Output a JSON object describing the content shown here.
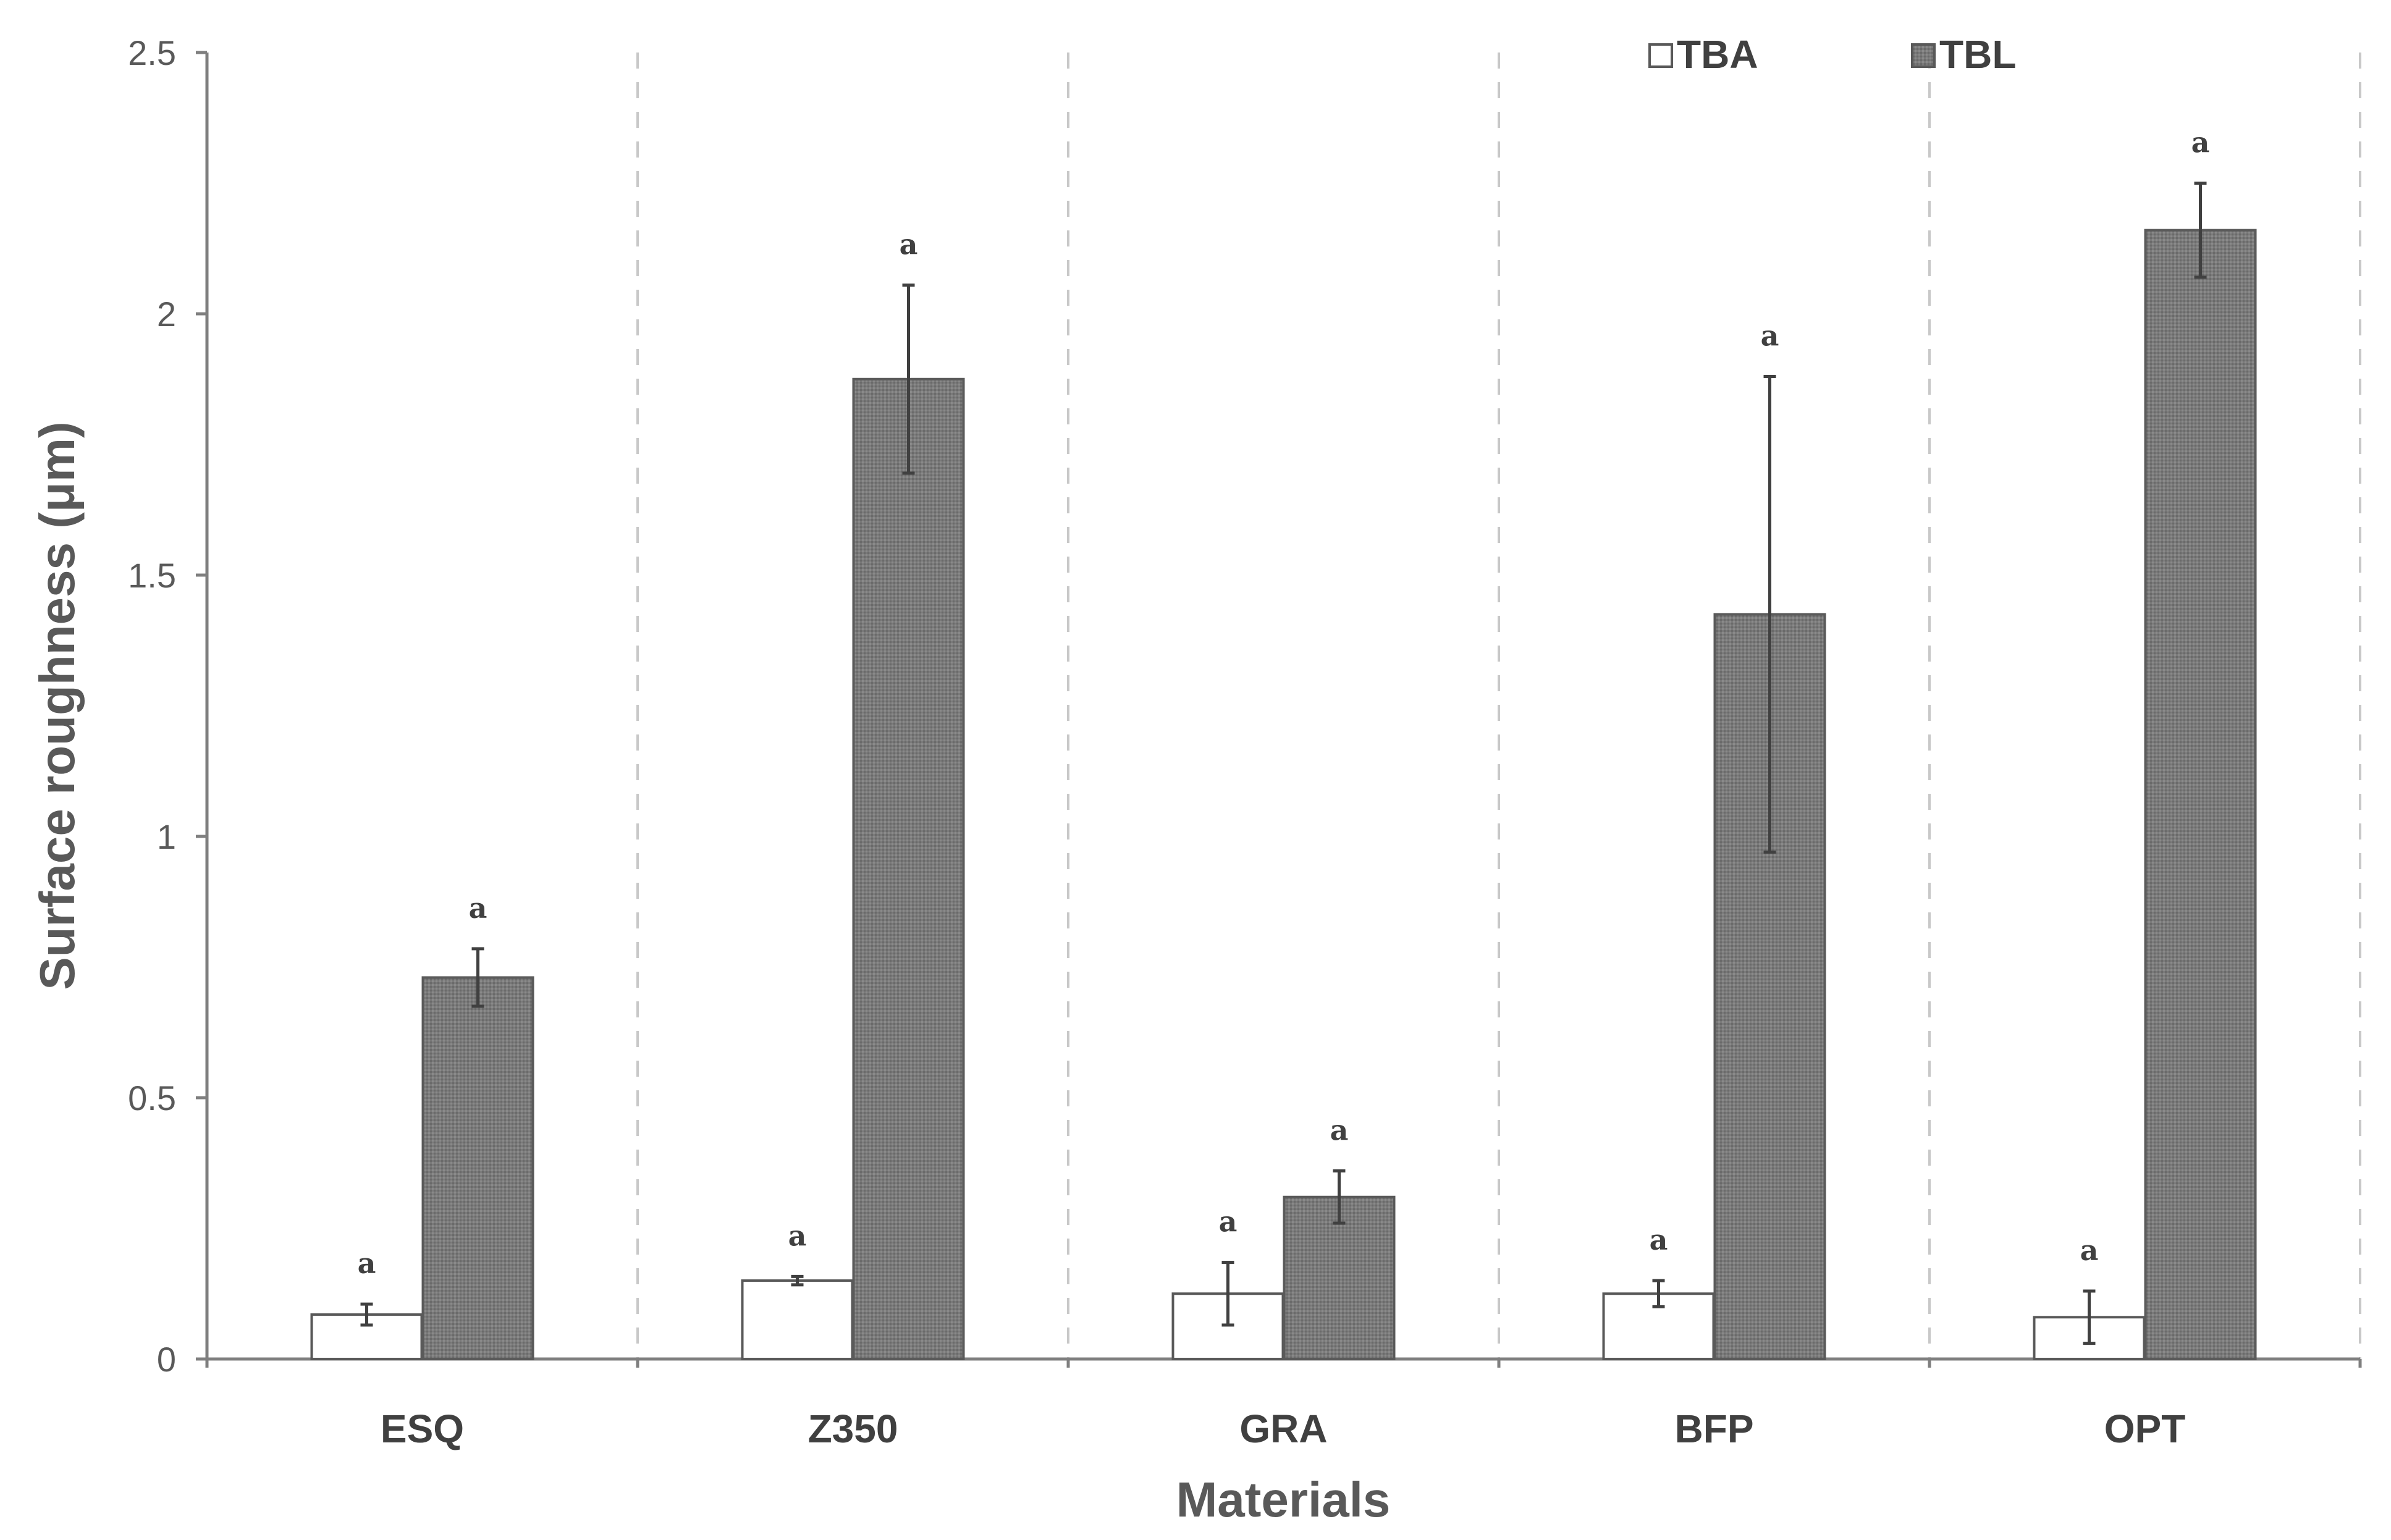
{
  "chart_data": {
    "type": "bar",
    "title": "",
    "xlabel": "Materials",
    "ylabel": "Surface roughness (μm)",
    "ylim": [
      0,
      2.5
    ],
    "yticks": [
      0,
      0.5,
      1,
      1.5,
      2,
      2.5
    ],
    "ytick_labels": [
      "0",
      "0.5",
      "1",
      "1.5",
      "2",
      "2.5"
    ],
    "categories": [
      "ESQ",
      "Z350",
      "GRA",
      "BFP",
      "OPT"
    ],
    "legend_position": "top-right",
    "separators": "dashed vertical lines between categories",
    "series": [
      {
        "name": "TBA",
        "fill": "#ffffff",
        "values": [
          0.085,
          0.15,
          0.125,
          0.125,
          0.08
        ],
        "errors": [
          0.02,
          0.008,
          0.06,
          0.025,
          0.05
        ],
        "sig_labels": [
          "a",
          "a",
          "a",
          "a",
          "a"
        ]
      },
      {
        "name": "TBL",
        "fill": "#7f7f7f",
        "values": [
          0.73,
          1.875,
          0.31,
          1.425,
          2.16
        ],
        "errors": [
          0.055,
          0.18,
          0.05,
          0.455,
          0.09
        ],
        "sig_labels": [
          "a",
          "a",
          "a",
          "a",
          "a"
        ]
      }
    ]
  }
}
